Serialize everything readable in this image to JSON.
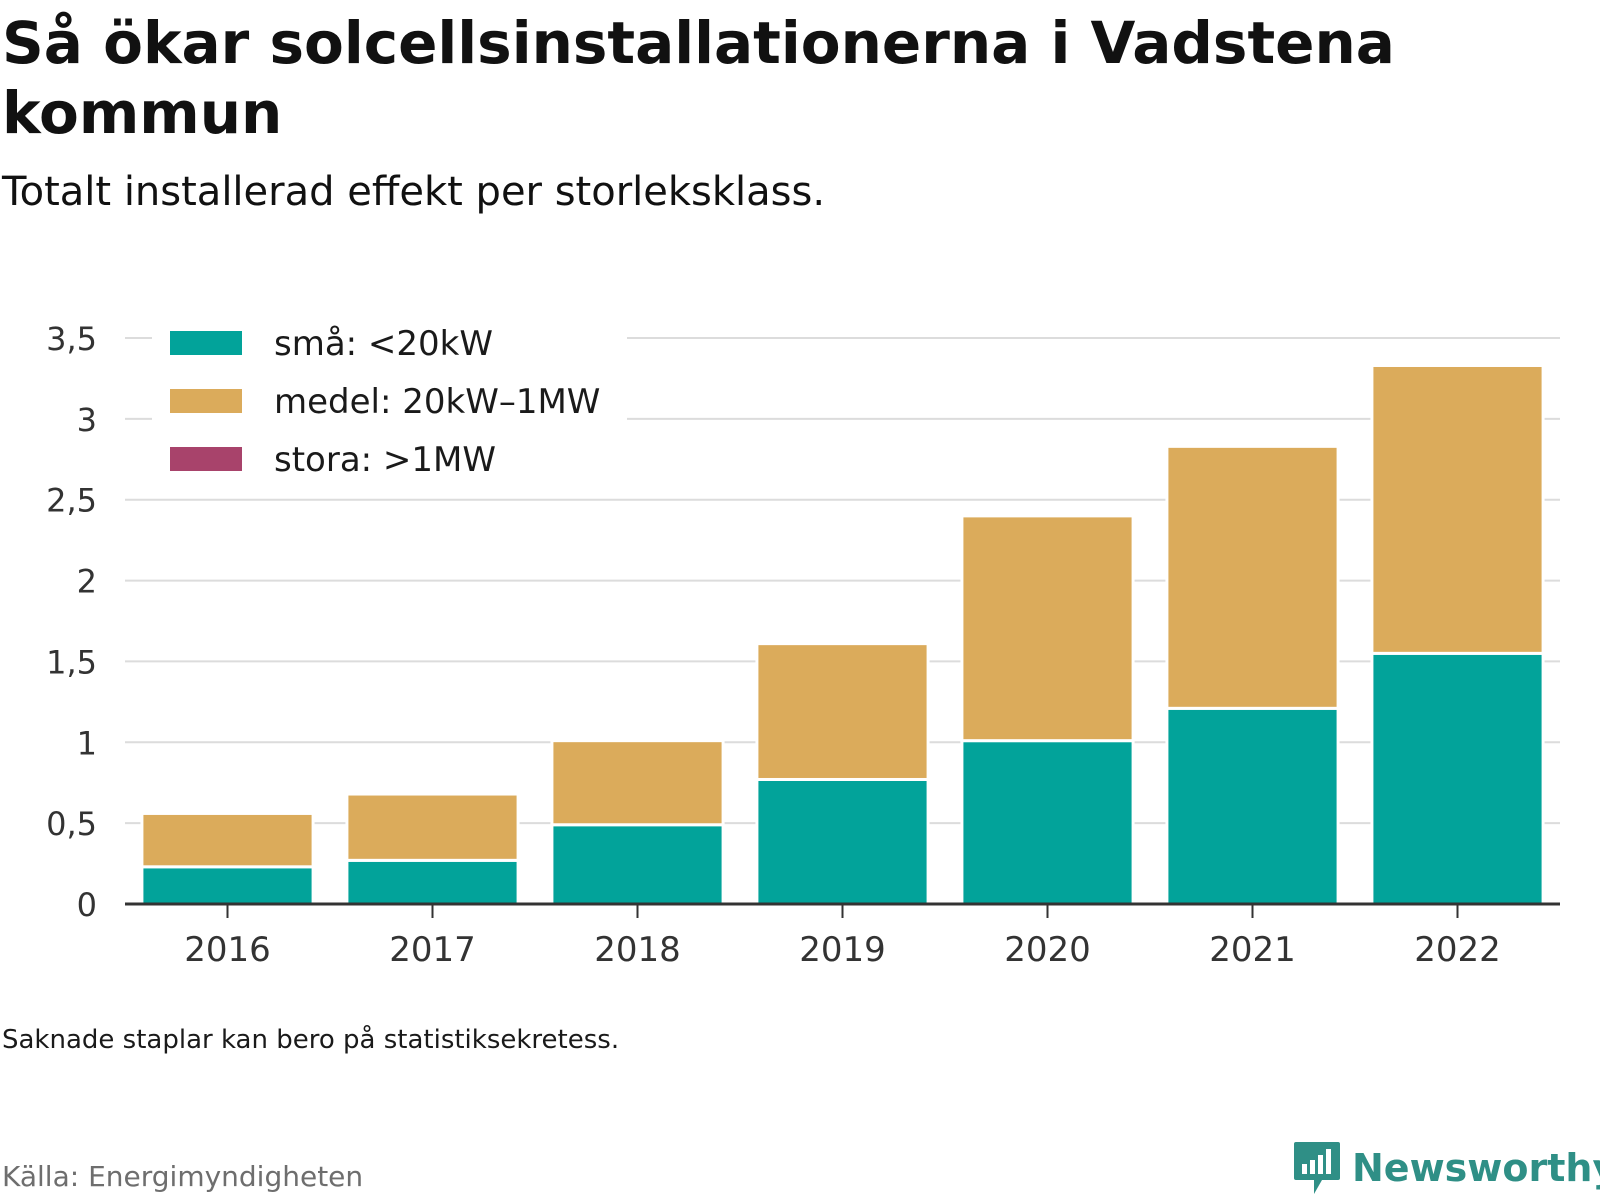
{
  "title": "Så ökar solcellsinstallationerna i Vadstena kommun",
  "subtitle": "Totalt installerad effekt per storleksklass.",
  "note": "Saknade staplar kan bero på statistiksekretess.",
  "source": "Källa: Energimyndigheten",
  "brand": {
    "name": "Newsworthy",
    "icon": "newsworthy-logo-icon",
    "color": "#2f8f86"
  },
  "chart_data": {
    "type": "bar",
    "stacked": true,
    "categories": [
      "2016",
      "2017",
      "2018",
      "2019",
      "2020",
      "2021",
      "2022"
    ],
    "series": [
      {
        "name": "små: <20kW",
        "color": "#02a39a",
        "values": [
          0.23,
          0.27,
          0.49,
          0.77,
          1.01,
          1.21,
          1.55
        ]
      },
      {
        "name": "medel: 20kW–1MW",
        "color": "#dbab5b",
        "values": [
          0.33,
          0.41,
          0.52,
          0.84,
          1.39,
          1.62,
          1.78
        ]
      },
      {
        "name": "stora: >1MW",
        "color": "#a8436b",
        "values": [
          0,
          0,
          0,
          0,
          0,
          0,
          0
        ]
      }
    ],
    "ylim": [
      0,
      3.5
    ],
    "yticks": [
      0,
      0.5,
      1,
      1.5,
      2,
      2.5,
      3,
      3.5
    ],
    "ytick_labels": [
      "0",
      "0,5",
      "1",
      "1,5",
      "2",
      "2,5",
      "3",
      "3,5"
    ],
    "grid": true,
    "legend_position": "top-left",
    "xlabel": "",
    "ylabel": ""
  }
}
